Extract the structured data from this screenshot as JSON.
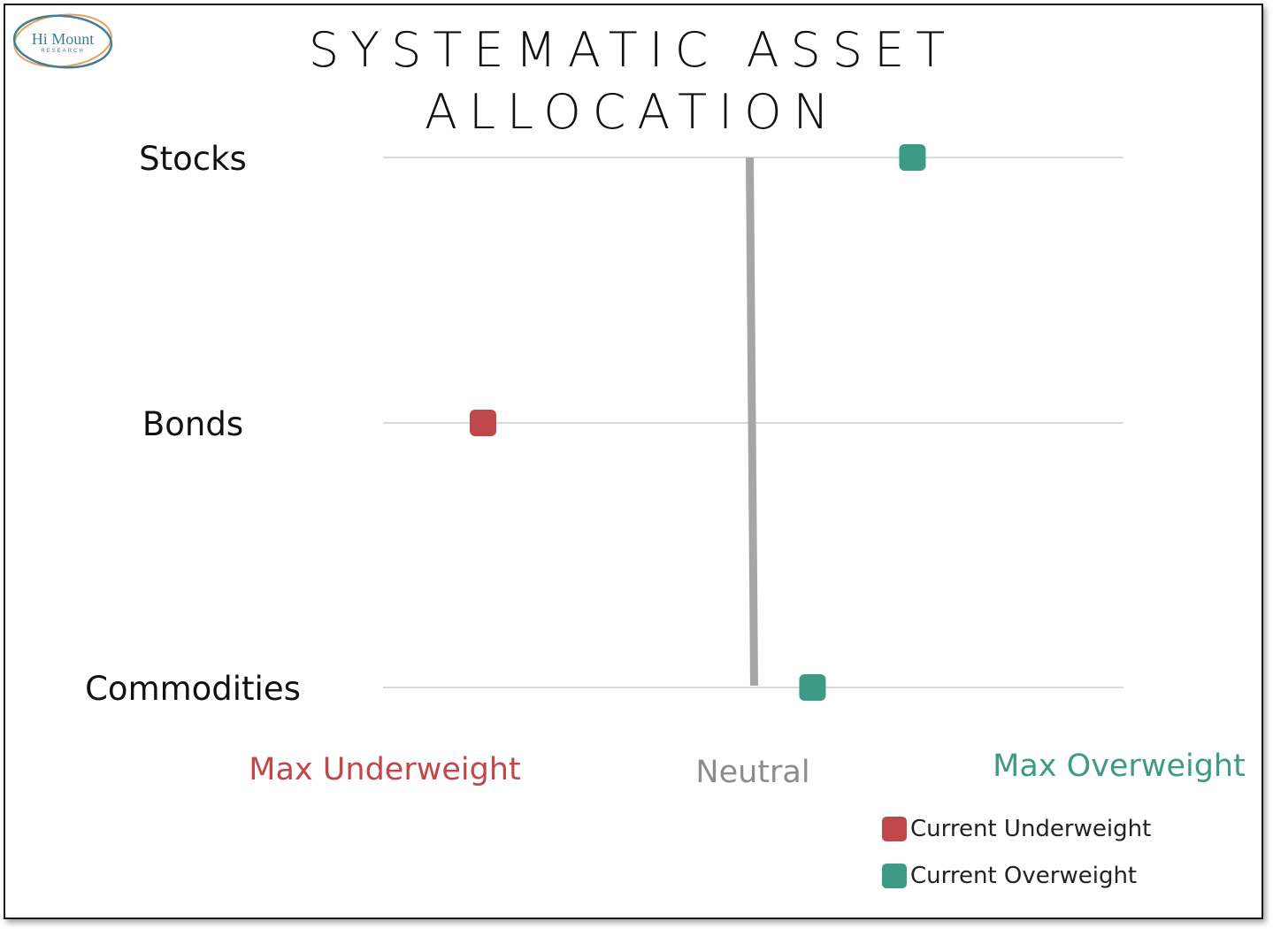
{
  "logo": {
    "name": "Hi Mount",
    "sub": "RESEARCH"
  },
  "title_line1": "SYSTEMATIC ASSET",
  "title_line2": "ALLOCATION",
  "chart_data": {
    "type": "scatter",
    "title": "SYSTEMATIC ASSET ALLOCATION",
    "categories": [
      "Stocks",
      "Bonds",
      "Commodities"
    ],
    "xlim": [
      -1,
      1
    ],
    "x_labels": {
      "min": "Max Underweight",
      "mid": "Neutral",
      "max": "Max Overweight"
    },
    "neutral_line": {
      "top": 0.0,
      "bottom": 0.01,
      "color": "#a6a6a6"
    },
    "points": [
      {
        "category": "Stocks",
        "x": 0.43,
        "status": "Current Overweight"
      },
      {
        "category": "Bonds",
        "x": -0.73,
        "status": "Current Underweight"
      },
      {
        "category": "Commodities",
        "x": 0.16,
        "status": "Current Overweight"
      }
    ],
    "legend": [
      {
        "label": "Current Underweight",
        "color": "#c0474a"
      },
      {
        "label": "Current Overweight",
        "color": "#3d9a84"
      }
    ],
    "legend_position": "bottom-right",
    "grid": true
  },
  "colors": {
    "underweight": "#c0474a",
    "overweight": "#3d9a84",
    "neutral": "#8c8c8c",
    "gridline": "#d9d9d9"
  }
}
